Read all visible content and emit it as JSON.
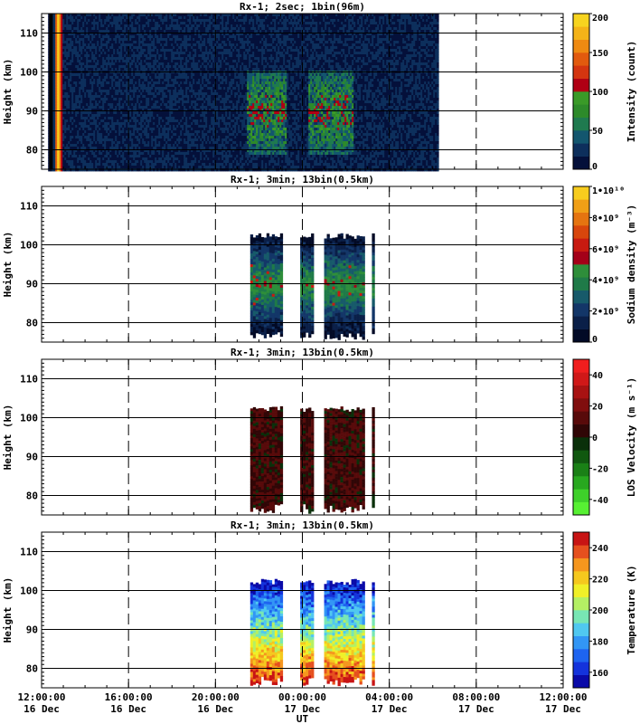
{
  "chart_data": [
    {
      "type": "heatmap",
      "title": "Rx-1;   2sec; 1bin(96m)",
      "ylabel": "Height (km)",
      "ylim": [
        75,
        115
      ],
      "y_ticks": [
        80,
        90,
        100,
        110
      ],
      "xlim_hours": [
        0,
        24
      ],
      "colorbar": {
        "label": "Intensity (count)",
        "range": [
          0,
          200
        ],
        "ticks": [
          "0",
          "50",
          "100",
          "150",
          "200"
        ],
        "colors": [
          "#04103a",
          "#0d2f5c",
          "#13566e",
          "#1f7a4f",
          "#2d8a2a",
          "#3a9a28",
          "#b00014",
          "#d43510",
          "#e25a0e",
          "#ee8a12",
          "#f4b318",
          "#f7d41f"
        ]
      },
      "data_coverage_hours": [
        0.3,
        18.2
      ],
      "laser_ramp_hours": [
        0.55,
        0.95
      ],
      "enhanced_periods_hours": [
        [
          9.4,
          11.2
        ],
        [
          12.2,
          14.3
        ]
      ]
    },
    {
      "type": "heatmap",
      "title": "Rx-1; 3min; 13bin(0.5km)",
      "ylabel": "Height (km)",
      "ylim": [
        75,
        115
      ],
      "y_ticks": [
        80,
        90,
        100,
        110
      ],
      "colorbar": {
        "label": "Sodium density (m⁻³)",
        "range": [
          0,
          10000000000.0
        ],
        "ticks": [
          "0",
          "2•10⁹",
          "4•10⁹",
          "6•10⁹",
          "8•10⁹",
          "1•10¹⁰"
        ],
        "colors": [
          "#020a26",
          "#0a1f48",
          "#133668",
          "#175a6a",
          "#1f7a48",
          "#2e8e3a",
          "#a40018",
          "#c81a10",
          "#d8460c",
          "#e57410",
          "#f09f16",
          "#f7cc1e"
        ]
      },
      "data_segments_hours": [
        [
          9.6,
          11.0
        ],
        [
          11.9,
          12.5
        ],
        [
          13.0,
          14.8
        ],
        [
          15.2,
          15.3
        ]
      ],
      "data_height_km": [
        76,
        103
      ]
    },
    {
      "type": "heatmap",
      "title": "Rx-1; 3min; 13bin(0.5km)",
      "ylabel": "Height (km)",
      "ylim": [
        75,
        115
      ],
      "y_ticks": [
        80,
        90,
        100,
        110
      ],
      "colorbar": {
        "label": "LOS Velocity (m s⁻¹)",
        "range": [
          -50,
          50
        ],
        "ticks": [
          "-40",
          "-20",
          "0",
          "20",
          "40"
        ],
        "colors": [
          "#57f033",
          "#3ed02a",
          "#28a81f",
          "#1a8016",
          "#10580f",
          "#0a300a",
          "#300606",
          "#580a0a",
          "#800e0e",
          "#a81212",
          "#d01818",
          "#f01e1e"
        ]
      },
      "data_segments_hours": [
        [
          9.6,
          11.0
        ],
        [
          11.9,
          12.5
        ],
        [
          13.0,
          14.8
        ],
        [
          15.2,
          15.3
        ]
      ],
      "data_height_km": [
        76,
        103
      ]
    },
    {
      "type": "heatmap",
      "title": "Rx-1; 3min; 13bin(0.5km)",
      "ylabel": "Height (km)",
      "ylim": [
        75,
        115
      ],
      "y_ticks": [
        80,
        90,
        100,
        110
      ],
      "colorbar": {
        "label": "Temperature (K)",
        "range": [
          150,
          250
        ],
        "ticks": [
          "160",
          "180",
          "200",
          "220",
          "240"
        ],
        "colors": [
          "#0a0aa8",
          "#1433dc",
          "#1e64f0",
          "#3296f5",
          "#50c8f0",
          "#78e6b4",
          "#b4f064",
          "#f0f028",
          "#f5c81e",
          "#f5961e",
          "#e6501e",
          "#c81414"
        ]
      },
      "data_segments_hours": [
        [
          9.6,
          11.0
        ],
        [
          11.9,
          12.5
        ],
        [
          13.0,
          14.8
        ],
        [
          15.2,
          15.3
        ]
      ],
      "data_height_km": [
        76,
        103
      ]
    }
  ],
  "x_axis": {
    "label": "UT",
    "ticks": [
      {
        "time": "12:00:00",
        "date": "16 Dec"
      },
      {
        "time": "16:00:00",
        "date": "16 Dec"
      },
      {
        "time": "20:00:00",
        "date": "16 Dec"
      },
      {
        "time": "00:00:00",
        "date": "17 Dec"
      },
      {
        "time": "04:00:00",
        "date": "17 Dec"
      },
      {
        "time": "08:00:00",
        "date": "17 Dec"
      },
      {
        "time": "12:00:00",
        "date": "17 Dec"
      }
    ]
  }
}
